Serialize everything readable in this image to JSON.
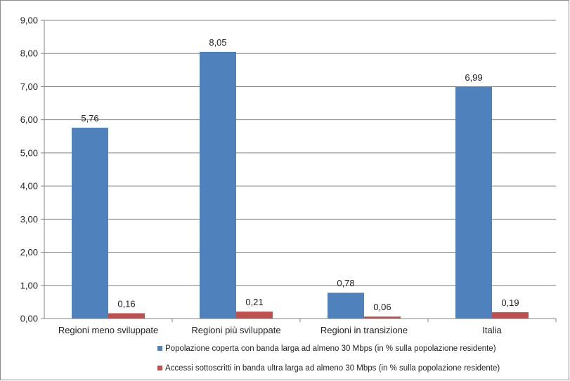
{
  "chart_data": {
    "type": "bar",
    "categories": [
      "Regioni meno sviluppate",
      "Regioni più sviluppate",
      "Regioni in transizione",
      "Italia"
    ],
    "series": [
      {
        "name": "Popolazione coperta con banda larga ad almeno 30 Mbps (in % sulla popolazione residente)",
        "values": [
          5.76,
          8.05,
          0.78,
          6.99
        ],
        "labels": [
          "5,76",
          "8,05",
          "0,78",
          "6,99"
        ],
        "color": "#4f81bd"
      },
      {
        "name": "Accessi sottoscritti in banda ultra larga ad almeno 30 Mbps (in % sulla popolazione residente)",
        "values": [
          0.16,
          0.21,
          0.06,
          0.19
        ],
        "labels": [
          "0,16",
          "0,21",
          "0,06",
          "0,19"
        ],
        "color": "#c0504d"
      }
    ],
    "ylim": [
      0,
      9
    ],
    "yticks": [
      0,
      1,
      2,
      3,
      4,
      5,
      6,
      7,
      8,
      9
    ],
    "ytick_labels": [
      "0,00",
      "1,00",
      "2,00",
      "3,00",
      "4,00",
      "5,00",
      "6,00",
      "7,00",
      "8,00",
      "9,00"
    ],
    "grid": true,
    "legend_position": "bottom",
    "title": "",
    "xlabel": "",
    "ylabel": ""
  }
}
